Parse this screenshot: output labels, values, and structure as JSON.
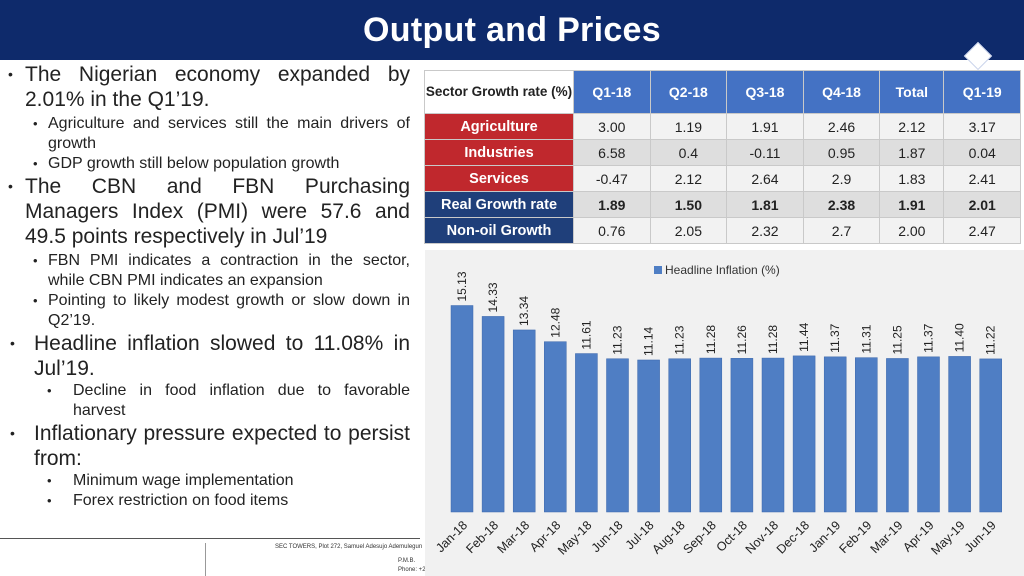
{
  "slide": {
    "title": "Output and Prices"
  },
  "bullets": {
    "gdp": "The Nigerian economy expanded by 2.01% in the Q1’19.",
    "gdp_sub1": "Agriculture and services still the main drivers of growth",
    "gdp_sub2": "GDP growth still below population growth",
    "pmi": "The CBN and FBN Purchasing Managers Index (PMI) were 57.6 and 49.5 points respectively in Jul’19",
    "pmi_sub1": "FBN PMI indicates a contraction in the sector, while CBN PMI indicates an expansion",
    "pmi_sub2": "Pointing to likely modest growth or slow down in Q2’19.",
    "inflation": "Headline inflation slowed to 11.08% in Jul’19.",
    "inflation_sub1": "Decline in food inflation due to favorable harvest",
    "pressure": "Inflationary pressure expected to persist from:",
    "pressure_sub1": "Minimum wage implementation",
    "pressure_sub2": "Forex restriction on food items"
  },
  "footer": {
    "address": "SEC TOWERS, Plot 272, Samuel Adesujo Ademulegun",
    "line2": "P.M.B.",
    "line3": "Phone: +2"
  },
  "colors": {
    "title_bg": "#0e2a6b",
    "header": "#4472c4",
    "row_label": "#c0282d",
    "row_label_alt": "#1f3f7a",
    "bar": "#4f7ec4"
  },
  "table": {
    "corner": "Sector Growth rate (%)",
    "headers": [
      "Q1-18",
      "Q2-18",
      "Q3-18",
      "Q4-18",
      "Total",
      "Q1-19"
    ],
    "rows": [
      {
        "label": "Agriculture",
        "values": [
          "3.00",
          "1.19",
          "1.91",
          "2.46",
          "2.12",
          "3.17"
        ]
      },
      {
        "label": "Industries",
        "values": [
          "6.58",
          "0.4",
          "-0.11",
          "0.95",
          "1.87",
          "0.04"
        ]
      },
      {
        "label": "Services",
        "values": [
          "-0.47",
          "2.12",
          "2.64",
          "2.9",
          "1.83",
          "2.41"
        ]
      },
      {
        "label": "Real Growth rate",
        "values": [
          "1.89",
          "1.50",
          "1.81",
          "2.38",
          "1.91",
          "2.01"
        ]
      },
      {
        "label": "Non-oil Growth",
        "values": [
          "0.76",
          "2.05",
          "2.32",
          "2.7",
          "2.00",
          "2.47"
        ]
      }
    ]
  },
  "chart_data": {
    "type": "bar",
    "categories": [
      "Jan-18",
      "Feb-18",
      "Mar-18",
      "Apr-18",
      "May-18",
      "Jun-18",
      "Jul-18",
      "Aug-18",
      "Sep-18",
      "Oct-18",
      "Nov-18",
      "Dec-18",
      "Jan-19",
      "Feb-19",
      "Mar-19",
      "Apr-19",
      "May-19",
      "Jun-19"
    ],
    "series": [
      {
        "name": "Headline Inflation (%)",
        "values": [
          15.13,
          14.33,
          13.34,
          12.48,
          11.61,
          11.23,
          11.14,
          11.23,
          11.28,
          11.26,
          11.28,
          11.44,
          11.37,
          11.31,
          11.25,
          11.37,
          11.4,
          11.22
        ]
      }
    ],
    "value_labels": [
      "15.13",
      "14.33",
      "13.34",
      "12.48",
      "11.61",
      "11.23",
      "11.14",
      "11.23",
      "11.28",
      "11.26",
      "11.28",
      "11.44",
      "11.37",
      "11.31",
      "11.25",
      "11.37",
      "11.40",
      "11.22"
    ],
    "ylim": [
      0,
      17
    ],
    "grid": false,
    "legend": "top-right"
  }
}
